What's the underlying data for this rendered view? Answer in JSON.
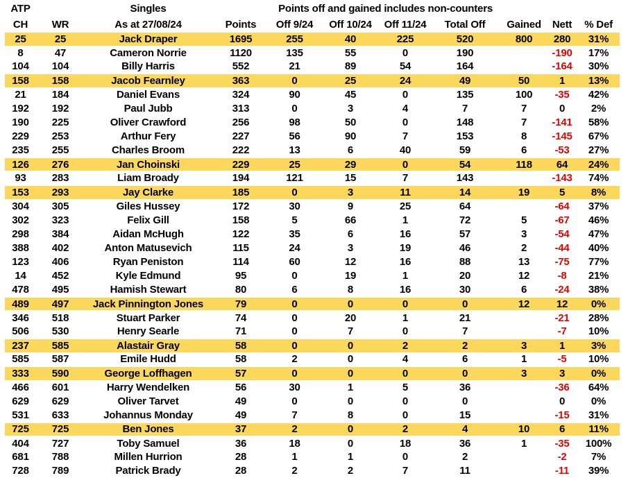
{
  "table": {
    "header_top": {
      "atp_label": "ATP",
      "singles_label": "Singles",
      "note": "Points off and gained includes non-counters"
    },
    "columns": [
      "CH",
      "WR",
      "As at 27/08/24",
      "Points",
      "Off 9/24",
      "Off 10/24",
      "Off 11/24",
      "Total Off",
      "Gained",
      "Nett",
      "% Def"
    ],
    "row_keys": [
      "ch",
      "wr",
      "name",
      "points",
      "off_9_24",
      "off_10_24",
      "off_11_24",
      "total_off",
      "gained",
      "nett",
      "pct_def"
    ],
    "rows": [
      {
        "ch": "25",
        "wr": "25",
        "name": "Jack Draper",
        "points": "1695",
        "off_9_24": "255",
        "off_10_24": "40",
        "off_11_24": "225",
        "total_off": "520",
        "gained": "800",
        "nett": "280",
        "pct_def": "31%",
        "highlight": true
      },
      {
        "ch": "8",
        "wr": "47",
        "name": "Cameron Norrie",
        "points": "1120",
        "off_9_24": "135",
        "off_10_24": "55",
        "off_11_24": "0",
        "total_off": "190",
        "gained": "",
        "nett": "-190",
        "pct_def": "17%",
        "highlight": false
      },
      {
        "ch": "104",
        "wr": "104",
        "name": "Billy Harris",
        "points": "552",
        "off_9_24": "21",
        "off_10_24": "89",
        "off_11_24": "54",
        "total_off": "164",
        "gained": "",
        "nett": "-164",
        "pct_def": "30%",
        "highlight": false
      },
      {
        "ch": "158",
        "wr": "158",
        "name": "Jacob Fearnley",
        "points": "363",
        "off_9_24": "0",
        "off_10_24": "25",
        "off_11_24": "24",
        "total_off": "49",
        "gained": "50",
        "nett": "1",
        "pct_def": "13%",
        "highlight": true
      },
      {
        "ch": "21",
        "wr": "184",
        "name": "Daniel Evans",
        "points": "324",
        "off_9_24": "90",
        "off_10_24": "45",
        "off_11_24": "0",
        "total_off": "135",
        "gained": "100",
        "nett": "-35",
        "pct_def": "42%",
        "highlight": false
      },
      {
        "ch": "192",
        "wr": "192",
        "name": "Paul Jubb",
        "points": "313",
        "off_9_24": "0",
        "off_10_24": "3",
        "off_11_24": "4",
        "total_off": "7",
        "gained": "7",
        "nett": "0",
        "pct_def": "2%",
        "highlight": false
      },
      {
        "ch": "190",
        "wr": "225",
        "name": "Oliver Crawford",
        "points": "256",
        "off_9_24": "98",
        "off_10_24": "50",
        "off_11_24": "0",
        "total_off": "148",
        "gained": "7",
        "nett": "-141",
        "pct_def": "58%",
        "highlight": false
      },
      {
        "ch": "229",
        "wr": "253",
        "name": "Arthur Fery",
        "points": "227",
        "off_9_24": "56",
        "off_10_24": "90",
        "off_11_24": "7",
        "total_off": "153",
        "gained": "8",
        "nett": "-145",
        "pct_def": "67%",
        "highlight": false
      },
      {
        "ch": "235",
        "wr": "255",
        "name": "Charles Broom",
        "points": "222",
        "off_9_24": "13",
        "off_10_24": "6",
        "off_11_24": "40",
        "total_off": "59",
        "gained": "6",
        "nett": "-53",
        "pct_def": "27%",
        "highlight": false
      },
      {
        "ch": "126",
        "wr": "276",
        "name": "Jan Choinski",
        "points": "229",
        "off_9_24": "25",
        "off_10_24": "29",
        "off_11_24": "0",
        "total_off": "54",
        "gained": "118",
        "nett": "64",
        "pct_def": "24%",
        "highlight": true
      },
      {
        "ch": "93",
        "wr": "283",
        "name": "Liam Broady",
        "points": "194",
        "off_9_24": "121",
        "off_10_24": "15",
        "off_11_24": "7",
        "total_off": "143",
        "gained": "",
        "nett": "-143",
        "pct_def": "74%",
        "highlight": false
      },
      {
        "ch": "153",
        "wr": "293",
        "name": "Jay Clarke",
        "points": "185",
        "off_9_24": "0",
        "off_10_24": "3",
        "off_11_24": "11",
        "total_off": "14",
        "gained": "19",
        "nett": "5",
        "pct_def": "8%",
        "highlight": true
      },
      {
        "ch": "304",
        "wr": "305",
        "name": "Giles Hussey",
        "points": "172",
        "off_9_24": "30",
        "off_10_24": "9",
        "off_11_24": "25",
        "total_off": "64",
        "gained": "",
        "nett": "-64",
        "pct_def": "37%",
        "highlight": false
      },
      {
        "ch": "302",
        "wr": "323",
        "name": "Felix Gill",
        "points": "158",
        "off_9_24": "5",
        "off_10_24": "66",
        "off_11_24": "1",
        "total_off": "72",
        "gained": "5",
        "nett": "-67",
        "pct_def": "46%",
        "highlight": false
      },
      {
        "ch": "298",
        "wr": "384",
        "name": "Aidan McHugh",
        "points": "122",
        "off_9_24": "35",
        "off_10_24": "6",
        "off_11_24": "16",
        "total_off": "57",
        "gained": "3",
        "nett": "-54",
        "pct_def": "47%",
        "highlight": false
      },
      {
        "ch": "388",
        "wr": "402",
        "name": "Anton Matusevich",
        "points": "115",
        "off_9_24": "24",
        "off_10_24": "3",
        "off_11_24": "19",
        "total_off": "46",
        "gained": "2",
        "nett": "-44",
        "pct_def": "40%",
        "highlight": false
      },
      {
        "ch": "123",
        "wr": "406",
        "name": "Ryan Peniston",
        "points": "114",
        "off_9_24": "60",
        "off_10_24": "12",
        "off_11_24": "16",
        "total_off": "88",
        "gained": "13",
        "nett": "-75",
        "pct_def": "77%",
        "highlight": false
      },
      {
        "ch": "14",
        "wr": "452",
        "name": "Kyle Edmund",
        "points": "95",
        "off_9_24": "0",
        "off_10_24": "19",
        "off_11_24": "1",
        "total_off": "20",
        "gained": "12",
        "nett": "-8",
        "pct_def": "21%",
        "highlight": false
      },
      {
        "ch": "478",
        "wr": "495",
        "name": "Hamish Stewart",
        "points": "80",
        "off_9_24": "6",
        "off_10_24": "8",
        "off_11_24": "16",
        "total_off": "30",
        "gained": "6",
        "nett": "-24",
        "pct_def": "38%",
        "highlight": false
      },
      {
        "ch": "489",
        "wr": "497",
        "name": "Jack Pinnington Jones",
        "points": "79",
        "off_9_24": "0",
        "off_10_24": "0",
        "off_11_24": "0",
        "total_off": "0",
        "gained": "12",
        "nett": "12",
        "pct_def": "0%",
        "highlight": true
      },
      {
        "ch": "346",
        "wr": "518",
        "name": "Stuart Parker",
        "points": "74",
        "off_9_24": "0",
        "off_10_24": "20",
        "off_11_24": "1",
        "total_off": "21",
        "gained": "",
        "nett": "-21",
        "pct_def": "28%",
        "highlight": false
      },
      {
        "ch": "506",
        "wr": "530",
        "name": "Henry Searle",
        "points": "71",
        "off_9_24": "0",
        "off_10_24": "7",
        "off_11_24": "0",
        "total_off": "7",
        "gained": "",
        "nett": "-7",
        "pct_def": "10%",
        "highlight": false
      },
      {
        "ch": "237",
        "wr": "585",
        "name": "Alastair Gray",
        "points": "58",
        "off_9_24": "0",
        "off_10_24": "0",
        "off_11_24": "2",
        "total_off": "2",
        "gained": "3",
        "nett": "1",
        "pct_def": "3%",
        "highlight": true
      },
      {
        "ch": "585",
        "wr": "587",
        "name": "Emile Hudd",
        "points": "58",
        "off_9_24": "2",
        "off_10_24": "0",
        "off_11_24": "4",
        "total_off": "6",
        "gained": "1",
        "nett": "-5",
        "pct_def": "10%",
        "highlight": false
      },
      {
        "ch": "333",
        "wr": "590",
        "name": "George Loffhagen",
        "points": "57",
        "off_9_24": "0",
        "off_10_24": "0",
        "off_11_24": "0",
        "total_off": "0",
        "gained": "3",
        "nett": "3",
        "pct_def": "0%",
        "highlight": true
      },
      {
        "ch": "466",
        "wr": "601",
        "name": "Harry Wendelken",
        "points": "56",
        "off_9_24": "30",
        "off_10_24": "1",
        "off_11_24": "5",
        "total_off": "36",
        "gained": "",
        "nett": "-36",
        "pct_def": "64%",
        "highlight": false
      },
      {
        "ch": "629",
        "wr": "629",
        "name": "Oliver Tarvet",
        "points": "49",
        "off_9_24": "0",
        "off_10_24": "0",
        "off_11_24": "0",
        "total_off": "0",
        "gained": "",
        "nett": "0",
        "pct_def": "0%",
        "highlight": false
      },
      {
        "ch": "531",
        "wr": "633",
        "name": "Johannus Monday",
        "points": "49",
        "off_9_24": "7",
        "off_10_24": "8",
        "off_11_24": "0",
        "total_off": "15",
        "gained": "",
        "nett": "-15",
        "pct_def": "31%",
        "highlight": false
      },
      {
        "ch": "725",
        "wr": "725",
        "name": "Ben Jones",
        "points": "37",
        "off_9_24": "2",
        "off_10_24": "0",
        "off_11_24": "2",
        "total_off": "4",
        "gained": "10",
        "nett": "6",
        "pct_def": "11%",
        "highlight": true
      },
      {
        "ch": "404",
        "wr": "727",
        "name": "Toby Samuel",
        "points": "36",
        "off_9_24": "18",
        "off_10_24": "0",
        "off_11_24": "18",
        "total_off": "36",
        "gained": "1",
        "nett": "-35",
        "pct_def": "100%",
        "highlight": false
      },
      {
        "ch": "681",
        "wr": "788",
        "name": "Millen Hurrion",
        "points": "28",
        "off_9_24": "1",
        "off_10_24": "1",
        "off_11_24": "0",
        "total_off": "2",
        "gained": "",
        "nett": "-2",
        "pct_def": "7%",
        "highlight": false
      },
      {
        "ch": "728",
        "wr": "789",
        "name": "Patrick Brady",
        "points": "28",
        "off_9_24": "2",
        "off_10_24": "2",
        "off_11_24": "7",
        "total_off": "11",
        "gained": "",
        "nett": "-11",
        "pct_def": "39%",
        "highlight": false
      }
    ]
  },
  "colors": {
    "highlight_row": "#FBD75B",
    "negative_value": "#EB0000",
    "text": "#000000",
    "background": "#FFFFFF"
  }
}
